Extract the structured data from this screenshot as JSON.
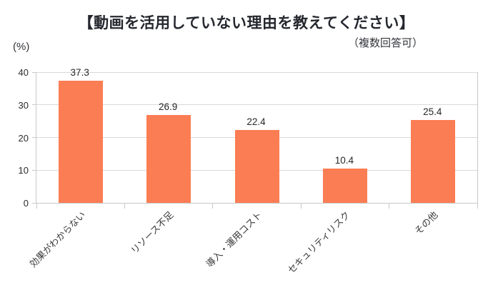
{
  "chart_data": {
    "type": "bar",
    "title": "【動画を活用していない理由を教えてください】",
    "subtitle": "（複数回答可）",
    "unit_label": "(%)",
    "categories": [
      "効果がわからない",
      "リソース不足",
      "導入・運用コスト",
      "セキュリティリスク",
      "その他"
    ],
    "values": [
      37.3,
      26.9,
      22.4,
      10.4,
      25.4
    ],
    "value_labels": [
      "37.3",
      "26.9",
      "22.4",
      "10.4",
      "25.4"
    ],
    "ylabel": "(%)",
    "xlabel": "",
    "ylim": [
      0,
      40
    ],
    "yticks": [
      0,
      10,
      20,
      30,
      40
    ],
    "grid": true,
    "legend": "none",
    "bar_color": "#fb7d54",
    "grid_color": "#d9d9d9",
    "axis_color": "#c8c8c8",
    "title_color": "#24272e",
    "text_color": "#2b2b2b"
  }
}
